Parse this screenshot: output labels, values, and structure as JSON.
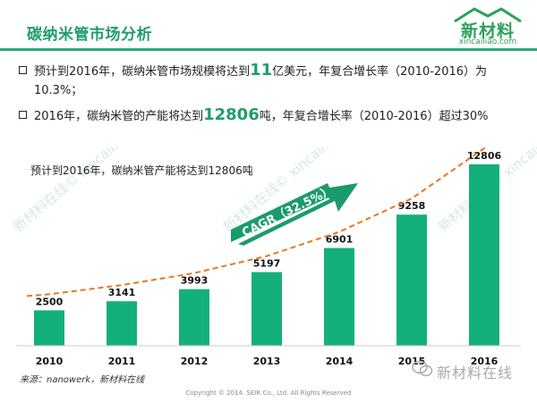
{
  "header": {
    "title": "碳纳米管市场分析",
    "logo_text": "新材料",
    "logo_url": "xincailiao.com",
    "brand_color": "#1f9e6a"
  },
  "bullets": [
    {
      "pre": "预计到2016年，碳纳米管市场规模将达到",
      "highlight": "11",
      "post": "亿美元，年复合增长率（2010-2016）为10.3%；"
    },
    {
      "pre": "2016年，碳纳米管的产能将达到",
      "highlight": "12806",
      "post": "吨，年复合增长率（2010-2016）超过30%"
    }
  ],
  "chart_data": {
    "type": "bar",
    "title": "预计到2016年，碳纳米管产能将达到12806吨",
    "categories": [
      "2010",
      "2011",
      "2012",
      "2013",
      "2014",
      "2015",
      "2016"
    ],
    "values": [
      2500,
      3141,
      3993,
      5197,
      6901,
      9258,
      12806
    ],
    "ylim": [
      0,
      13500
    ],
    "annotation": "CAGR（32.5%）",
    "bar_color": "#14b07c",
    "trend_color": "#e87722",
    "grid": false
  },
  "watermark": "新材料在线©  xincailiao.com",
  "footer": {
    "source": "来源：nanowerk，新材料在线",
    "copyright": "Copyright © 2014. SEIR Co., Ltd. All Rights Reserved",
    "wechat_label": "新材料在线"
  }
}
